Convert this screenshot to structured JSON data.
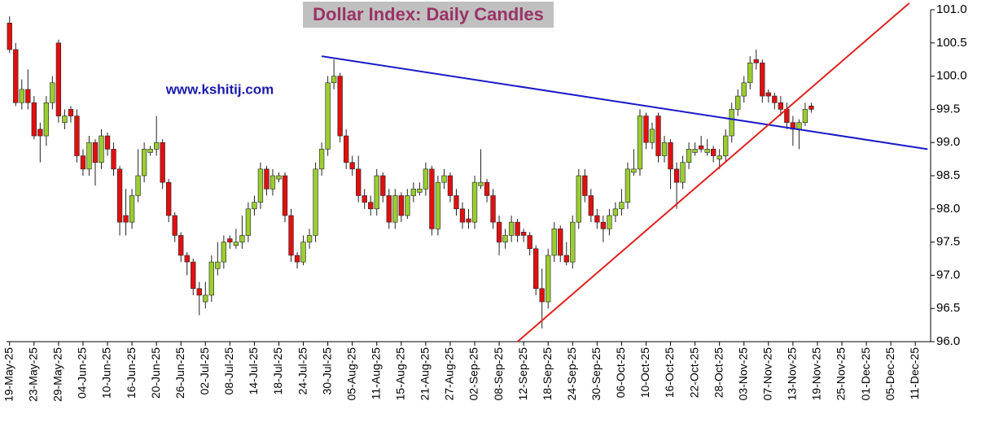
{
  "chart_data": {
    "type": "candlestick",
    "title": "Dollar Index: Daily Candles",
    "watermark": "www.kshitij.com",
    "up_color": "#9acd32",
    "down_color": "#e01010",
    "outline_color": "#222222",
    "ylim": [
      96,
      101
    ],
    "yticks": [
      {
        "value": 96,
        "label": "96.0"
      },
      96.5,
      {
        "value": 97,
        "label": "97.0"
      },
      97.5,
      {
        "value": 98,
        "label": "98.0"
      },
      98.5,
      {
        "value": 99,
        "label": "99.0"
      },
      99.5,
      {
        "value": 100,
        "label": "100.0"
      },
      100.5,
      {
        "value": 101,
        "label": "101.0"
      }
    ],
    "categories": [
      "19-May-25",
      null,
      null,
      null,
      "23-May-25",
      null,
      null,
      null,
      "29-May-25",
      null,
      null,
      null,
      "04-Jun-25",
      null,
      null,
      null,
      "10-Jun-25",
      null,
      null,
      null,
      "16-Jun-25",
      null,
      null,
      null,
      "20-Jun-25",
      null,
      null,
      null,
      "26-Jun-25",
      null,
      null,
      null,
      "02-Jul-25",
      null,
      null,
      null,
      "08-Jul-25",
      null,
      null,
      null,
      "14-Jul-25",
      null,
      null,
      null,
      "18-Jul-25",
      null,
      null,
      null,
      "24-Jul-25",
      null,
      null,
      null,
      "30-Jul-25",
      null,
      null,
      null,
      "05-Aug-25",
      null,
      null,
      null,
      "11-Aug-25",
      null,
      null,
      null,
      "15-Aug-25",
      null,
      null,
      null,
      "21-Aug-25",
      null,
      null,
      null,
      "27-Aug-25",
      null,
      null,
      null,
      "02-Sep-25",
      null,
      null,
      null,
      "08-Sep-25",
      null,
      null,
      null,
      "12-Sep-25",
      null,
      null,
      null,
      "18-Sep-25",
      null,
      null,
      null,
      "24-Sep-25",
      null,
      null,
      null,
      "30-Sep-25",
      null,
      null,
      null,
      "06-Oct-25",
      null,
      null,
      null,
      "10-Oct-25",
      null,
      null,
      null,
      "16-Oct-25",
      null,
      null,
      null,
      "22-Oct-25",
      null,
      null,
      null,
      "28-Oct-25",
      null,
      null,
      null,
      "03-Nov-25",
      null,
      null,
      null,
      "07-Nov-25",
      null,
      null,
      null,
      "13-Nov-25",
      null,
      null,
      null,
      "19-Nov-25",
      null,
      null,
      null,
      "25-Nov-25",
      null,
      null,
      null,
      "01-Dec-25",
      null,
      null,
      null,
      "05-Dec-25",
      null,
      null,
      null,
      "11-Dec-25",
      null,
      null
    ],
    "open": [
      100.8,
      100.4,
      99.6,
      99.8,
      99.6,
      99.2,
      99.1,
      99.6,
      100.5,
      99.3,
      99.5,
      99.4,
      98.8,
      98.6,
      99.0,
      98.7,
      99.1,
      98.9,
      98.6,
      97.9,
      97.8,
      98.2,
      98.5,
      98.85,
      98.9,
      99.0,
      98.4,
      97.9,
      97.6,
      97.3,
      97.2,
      96.8,
      96.6,
      96.7,
      97.1,
      97.2,
      97.55,
      97.45,
      97.5,
      97.6,
      98.0,
      98.1,
      98.6,
      98.3,
      98.45,
      98.5,
      97.9,
      97.3,
      97.2,
      97.5,
      97.6,
      98.6,
      98.9,
      99.9,
      100.0,
      99.1,
      98.7,
      98.6,
      98.2,
      98.1,
      98.0,
      98.5,
      98.2,
      97.8,
      98.2,
      97.9,
      98.2,
      98.25,
      98.3,
      98.6,
      97.7,
      98.4,
      98.5,
      98.2,
      98.0,
      97.85,
      97.8,
      98.35,
      98.4,
      98.2,
      97.8,
      97.5,
      97.6,
      97.8,
      97.65,
      97.6,
      97.4,
      96.8,
      96.6,
      97.3,
      97.7,
      97.3,
      97.2,
      97.8,
      98.5,
      98.2,
      97.9,
      97.8,
      97.7,
      97.9,
      98.0,
      98.1,
      98.55,
      98.6,
      99.4,
      99.0,
      99.4,
      98.8,
      99.0,
      98.6,
      98.4,
      98.7,
      98.85,
      98.95,
      98.85,
      98.9,
      98.75,
      98.8,
      99.1,
      99.5,
      99.7,
      99.9,
      100.25,
      100.2,
      99.75,
      99.7,
      99.6,
      99.5,
      99.3,
      99.2,
      99.3,
      99.55,
      null,
      null,
      null,
      null,
      null,
      null,
      null,
      null,
      null,
      null,
      null,
      null,
      null,
      null,
      null,
      null,
      null,
      null,
      null
    ],
    "high": [
      100.9,
      100.5,
      99.95,
      100.1,
      99.7,
      99.3,
      99.7,
      100.0,
      100.55,
      99.5,
      99.55,
      99.5,
      98.9,
      99.1,
      99.05,
      99.2,
      99.15,
      99.0,
      98.65,
      98.3,
      98.3,
      98.9,
      99.0,
      98.95,
      99.4,
      99.05,
      98.45,
      97.95,
      97.65,
      97.35,
      97.25,
      96.9,
      96.9,
      97.3,
      97.5,
      97.6,
      97.6,
      97.7,
      97.9,
      98.1,
      98.2,
      98.7,
      98.65,
      98.6,
      98.55,
      98.55,
      98.0,
      97.35,
      97.6,
      97.7,
      98.7,
      99.0,
      100.0,
      100.25,
      100.05,
      99.2,
      98.8,
      98.8,
      98.3,
      98.2,
      98.6,
      98.55,
      98.3,
      98.3,
      98.25,
      98.3,
      98.4,
      98.4,
      98.7,
      98.65,
      98.5,
      98.6,
      98.55,
      98.3,
      98.1,
      98.0,
      98.5,
      98.9,
      98.45,
      98.3,
      97.9,
      97.7,
      97.9,
      97.85,
      97.7,
      97.65,
      97.45,
      97.1,
      97.4,
      97.8,
      97.75,
      97.5,
      97.9,
      98.6,
      98.6,
      98.3,
      98.0,
      97.9,
      98.0,
      98.1,
      98.3,
      98.7,
      98.9,
      99.5,
      99.45,
      99.3,
      99.45,
      99.1,
      99.05,
      98.7,
      98.8,
      99.0,
      99.0,
      99.1,
      99.05,
      98.95,
      98.9,
      99.2,
      99.6,
      99.8,
      100.0,
      100.3,
      100.4,
      100.25,
      99.8,
      99.75,
      99.7,
      99.6,
      99.4,
      99.35,
      99.6,
      99.6,
      null,
      null,
      null,
      null,
      null,
      null,
      null,
      null,
      null,
      null,
      null,
      null,
      null,
      null,
      null,
      null,
      null,
      null,
      null
    ],
    "low": [
      100.35,
      99.55,
      99.5,
      99.5,
      99.05,
      98.7,
      98.95,
      99.5,
      99.3,
      99.2,
      99.3,
      98.7,
      98.5,
      98.5,
      98.35,
      98.6,
      98.8,
      98.5,
      97.6,
      97.6,
      97.7,
      98.1,
      98.4,
      98.8,
      98.8,
      98.3,
      97.8,
      97.5,
      97.2,
      97.0,
      96.7,
      96.4,
      96.5,
      96.6,
      97.0,
      97.1,
      97.4,
      97.4,
      97.4,
      97.5,
      97.9,
      98.0,
      98.2,
      98.2,
      98.4,
      97.8,
      97.2,
      97.1,
      97.15,
      97.4,
      97.5,
      98.5,
      98.8,
      99.8,
      99.0,
      98.6,
      98.5,
      98.1,
      98.0,
      97.9,
      97.9,
      98.1,
      97.7,
      97.7,
      97.8,
      97.85,
      98.1,
      98.2,
      98.2,
      97.6,
      97.6,
      98.3,
      98.1,
      97.9,
      97.7,
      97.7,
      97.7,
      98.3,
      98.1,
      97.7,
      97.3,
      97.4,
      97.5,
      97.5,
      97.5,
      97.3,
      96.7,
      96.2,
      96.5,
      97.2,
      97.2,
      97.15,
      97.1,
      97.7,
      98.1,
      97.8,
      97.7,
      97.5,
      97.6,
      97.8,
      97.9,
      98.0,
      98.5,
      98.5,
      98.9,
      98.9,
      98.7,
      98.7,
      98.3,
      98.0,
      98.3,
      98.6,
      98.8,
      98.85,
      98.8,
      98.7,
      98.6,
      98.7,
      99.0,
      99.4,
      99.6,
      99.8,
      100.1,
      99.6,
      99.6,
      99.5,
      99.4,
      99.2,
      98.95,
      98.9,
      99.25,
      99.45,
      null,
      null,
      null,
      null,
      null,
      null,
      null,
      null,
      null,
      null,
      null,
      null,
      null,
      null,
      null,
      null,
      null,
      null,
      null
    ],
    "close": [
      100.4,
      99.6,
      99.8,
      99.6,
      99.1,
      99.1,
      99.6,
      99.9,
      99.4,
      99.4,
      99.4,
      98.8,
      98.6,
      99.0,
      98.7,
      99.1,
      98.9,
      98.6,
      97.8,
      97.8,
      98.2,
      98.5,
      98.9,
      98.9,
      99.0,
      98.4,
      97.9,
      97.6,
      97.3,
      97.2,
      96.8,
      96.7,
      96.7,
      97.2,
      97.2,
      97.5,
      97.5,
      97.5,
      97.6,
      98.0,
      98.1,
      98.6,
      98.3,
      98.5,
      98.5,
      97.9,
      97.3,
      97.2,
      97.5,
      97.6,
      98.6,
      98.9,
      99.9,
      100.0,
      99.1,
      98.7,
      98.6,
      98.2,
      98.1,
      98.0,
      98.5,
      98.2,
      97.8,
      98.2,
      97.9,
      98.2,
      98.3,
      98.3,
      98.6,
      97.7,
      98.4,
      98.5,
      98.2,
      98.0,
      97.8,
      97.8,
      98.4,
      98.4,
      98.2,
      97.8,
      97.5,
      97.6,
      97.8,
      97.6,
      97.6,
      97.4,
      96.8,
      96.6,
      97.3,
      97.7,
      97.3,
      97.2,
      97.8,
      98.5,
      98.2,
      97.9,
      97.8,
      97.7,
      97.9,
      98.0,
      98.1,
      98.6,
      98.6,
      99.4,
      99.0,
      99.2,
      98.8,
      99.0,
      98.6,
      98.4,
      98.7,
      98.9,
      98.9,
      98.9,
      98.9,
      98.8,
      98.8,
      99.1,
      99.5,
      99.7,
      99.9,
      100.2,
      100.2,
      99.7,
      99.7,
      99.6,
      99.5,
      99.3,
      99.2,
      99.3,
      99.5,
      99.5,
      null,
      null,
      null,
      null,
      null,
      null,
      null,
      null,
      null,
      null,
      null,
      null,
      null,
      null,
      null,
      null,
      null,
      null,
      null
    ],
    "trendlines": [
      {
        "color": "#1a1ac8",
        "x": [
          51,
          150
        ],
        "values": [
          100.3,
          98.9
        ]
      },
      {
        "color": "#e02020",
        "x": [
          83,
          147
        ],
        "values": [
          96.0,
          101.1
        ]
      }
    ]
  }
}
